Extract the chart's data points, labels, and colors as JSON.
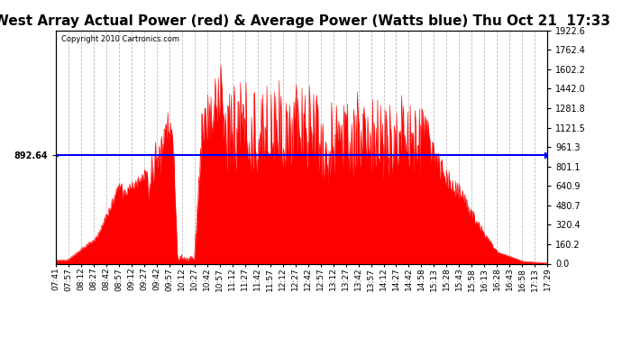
{
  "title": "West Array Actual Power (red) & Average Power (Watts blue) Thu Oct 21  17:33",
  "copyright_text": "Copyright 2010 Cartronics.com",
  "avg_power": 892.64,
  "y_max": 1922.6,
  "y_min": 0.0,
  "y_ticks": [
    0.0,
    160.2,
    320.4,
    480.7,
    640.9,
    801.1,
    961.3,
    1121.5,
    1281.8,
    1442.0,
    1602.2,
    1762.4,
    1922.6
  ],
  "x_labels": [
    "07:41",
    "07:57",
    "08:12",
    "08:27",
    "08:42",
    "08:57",
    "09:12",
    "09:27",
    "09:42",
    "09:57",
    "10:12",
    "10:27",
    "10:42",
    "10:57",
    "11:12",
    "11:27",
    "11:42",
    "11:57",
    "12:12",
    "12:27",
    "12:42",
    "12:57",
    "13:12",
    "13:27",
    "13:42",
    "13:57",
    "14:12",
    "14:27",
    "14:42",
    "14:58",
    "15:13",
    "15:28",
    "15:43",
    "15:58",
    "16:13",
    "16:28",
    "16:43",
    "16:58",
    "17:13",
    "17:29"
  ],
  "background_color": "#ffffff",
  "bar_color": "#ff0000",
  "line_color": "#0000ff",
  "grid_color": "#aaaaaa",
  "title_fontsize": 11,
  "avg_label": "892.64"
}
